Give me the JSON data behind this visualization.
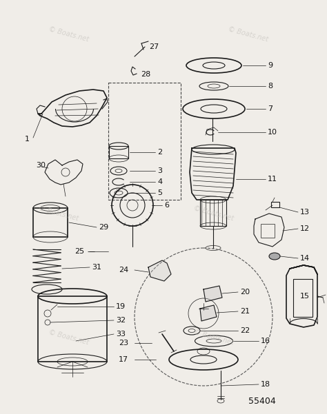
{
  "background_color": "#f0ede8",
  "watermark_text": "© Boats.net",
  "watermark_color": "#c0bdb8",
  "diagram_id": "55404",
  "line_color": "#1a1a1a",
  "label_color": "#111111",
  "label_fontsize": 7.5
}
